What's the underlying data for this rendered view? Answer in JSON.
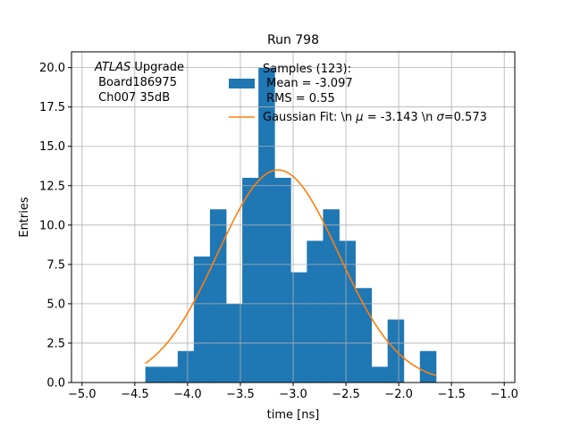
{
  "chart_data": {
    "type": "bar",
    "title": "Run 798",
    "xlabel": "time [ns]",
    "ylabel": "Entries",
    "xlim": [
      -5.1,
      -0.9
    ],
    "ylim": [
      0,
      21
    ],
    "grid": true,
    "x_ticks": [
      -5.0,
      -4.5,
      -4.0,
      -3.5,
      -3.0,
      -2.5,
      -2.0,
      -1.5,
      -1.0
    ],
    "x_tick_labels": [
      "−5.0",
      "−4.5",
      "−4.0",
      "−3.5",
      "−3.0",
      "−2.5",
      "−2.0",
      "−1.5",
      "−1.0"
    ],
    "y_ticks": [
      0,
      2.5,
      5,
      7.5,
      10,
      12.5,
      15,
      17.5,
      20
    ],
    "y_tick_labels": [
      "0.0",
      "2.5",
      "5.0",
      "7.5",
      "10.0",
      "12.5",
      "15.0",
      "17.5",
      "20.0"
    ],
    "histogram": {
      "name": "Samples (123):\n Mean = -3.097\n RMS = 0.55",
      "color": "#1f77b4",
      "bin_edges": [
        -4.4,
        -4.247,
        -4.094,
        -3.941,
        -3.788,
        -3.635,
        -3.482,
        -3.329,
        -3.176,
        -3.023,
        -2.87,
        -2.717,
        -2.564,
        -2.411,
        -2.258,
        -2.105,
        -1.952,
        -1.799,
        -1.646
      ],
      "counts": [
        1,
        1,
        2,
        8,
        11,
        5,
        13,
        20,
        13,
        7,
        9,
        11,
        9,
        6,
        1,
        4,
        0,
        2
      ]
    },
    "fit": {
      "name": "Gaussian Fit: \\n $\\mu$ = -3.143 \\n $\\sigma$=0.573",
      "color": "#ff7f0e",
      "x_range": [
        -4.4,
        -1.646
      ],
      "amplitude": 13.5,
      "mu": -3.143,
      "sigma": 0.573
    },
    "annotation": {
      "italic_part": "ATLAS",
      "line1_rest": " Upgrade",
      "line2": " Board186975",
      "line3": " Ch007 35dB"
    },
    "legend": {
      "location": "upper-right",
      "hist_lines": [
        "Samples (123):",
        " Mean = -3.097",
        " RMS = 0.55"
      ],
      "fit_label_pre": "Gaussian Fit: \\n ",
      "fit_mu_symbol": "μ",
      "fit_label_mid": " = -3.143 \\n ",
      "fit_sigma_symbol": "σ",
      "fit_label_post": "=0.573"
    }
  }
}
